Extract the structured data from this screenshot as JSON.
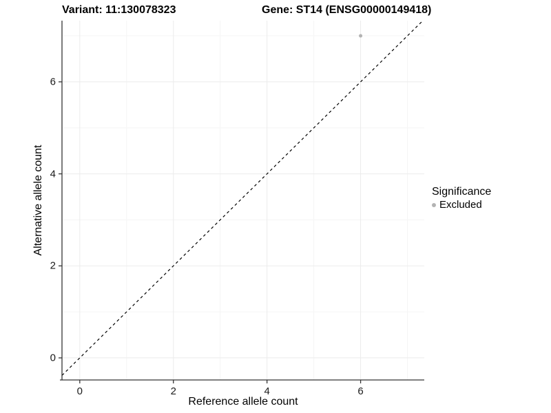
{
  "chart_data": {
    "type": "scatter",
    "title_left": "Variant: 11:130078323",
    "title_right": "Gene: ST14 (ENSG00000149418)",
    "xlabel": "Reference allele count",
    "ylabel": "Alternative allele count",
    "x_major_ticks": [
      0,
      2,
      4,
      6
    ],
    "x_minor_ticks": [
      1,
      3,
      5,
      7
    ],
    "y_major_ticks": [
      0,
      2,
      4,
      6
    ],
    "y_minor_ticks": [
      1,
      3,
      5,
      7
    ],
    "xlim": [
      -0.38,
      7.36
    ],
    "ylim": [
      -0.48,
      7.33
    ],
    "grid": true,
    "identity_line": {
      "equation": "y = x",
      "style": "dashed",
      "color": "#000000"
    },
    "series": [
      {
        "name": "Excluded",
        "color": "#b3b3b3",
        "point_radius": 2.5,
        "points": [
          [
            6,
            7
          ]
        ]
      }
    ],
    "legend": {
      "title": "Significance",
      "position": "right",
      "entries": [
        {
          "label": "Excluded",
          "color": "#b3b3b3"
        }
      ]
    },
    "colors": {
      "axis": "#333333",
      "tick": "#333333",
      "grid_major": "#ebebeb",
      "grid_minor": "#f5f5f5"
    }
  }
}
